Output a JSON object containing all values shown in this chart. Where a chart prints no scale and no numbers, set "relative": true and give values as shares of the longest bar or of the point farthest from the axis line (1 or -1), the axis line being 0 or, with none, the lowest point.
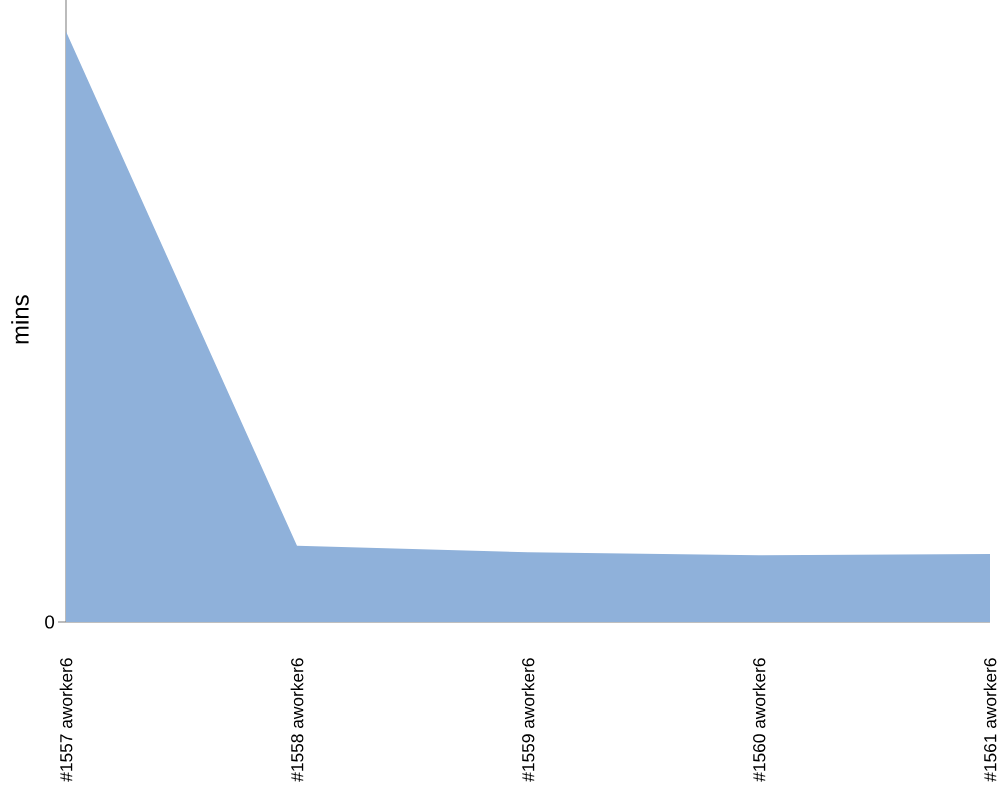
{
  "chart_data": {
    "type": "area",
    "ylabel": "mins",
    "categories": [
      "#1557 aworker6",
      "#1558 aworker6",
      "#1559 aworker6",
      "#1560 aworker6",
      "#1561 aworker6"
    ],
    "values": [
      1,
      0.129,
      0.118,
      0.113,
      0.115
    ],
    "color": "#8fb1da",
    "relative": true,
    "annotations": [
      "0"
    ]
  }
}
